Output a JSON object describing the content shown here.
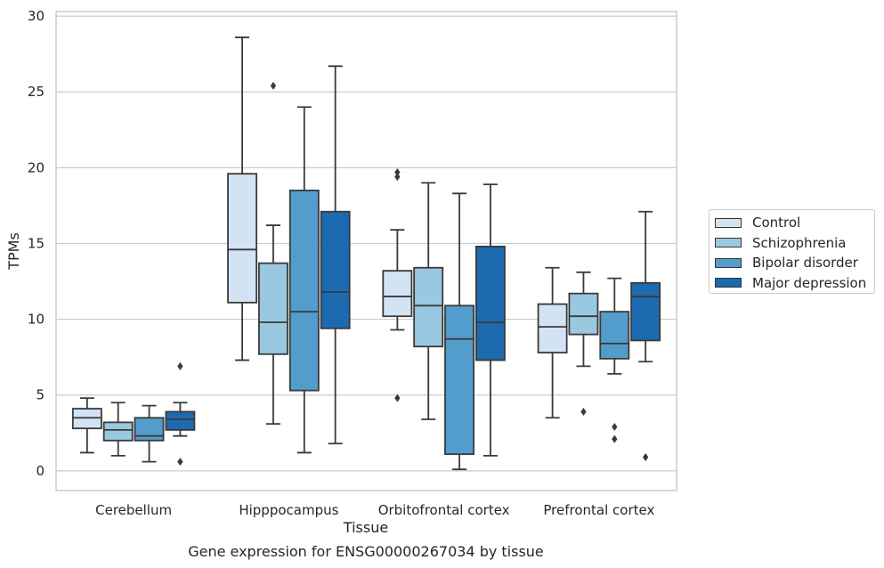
{
  "chart_data": {
    "type": "box",
    "title": "Gene expression for ENSG00000267034 by tissue",
    "xlabel": "Tissue",
    "ylabel": "TPMs",
    "ylim": [
      -1.3,
      30.3
    ],
    "yticks": [
      0,
      5,
      10,
      15,
      20,
      25,
      30
    ],
    "grid": true,
    "legend_position": "right",
    "categories": [
      "Cerebellum",
      "Hipppocampus",
      "Orbitofrontal cortex",
      "Prefrontal cortex"
    ],
    "series": [
      {
        "name": "Control",
        "color": "#d2e3f3",
        "boxes": [
          {
            "whislo": 1.2,
            "q1": 2.8,
            "med": 3.5,
            "q3": 4.1,
            "whishi": 4.8,
            "fliers": []
          },
          {
            "whislo": 7.3,
            "q1": 11.1,
            "med": 14.6,
            "q3": 19.6,
            "whishi": 28.6,
            "fliers": []
          },
          {
            "whislo": 9.3,
            "q1": 10.2,
            "med": 11.5,
            "q3": 13.2,
            "whishi": 15.9,
            "fliers": [
              19.7,
              19.4,
              4.8
            ]
          },
          {
            "whislo": 3.5,
            "q1": 7.8,
            "med": 9.5,
            "q3": 11.0,
            "whishi": 13.4,
            "fliers": []
          }
        ]
      },
      {
        "name": "Schizophrenia",
        "color": "#9ac8e0",
        "boxes": [
          {
            "whislo": 1.0,
            "q1": 2.0,
            "med": 2.7,
            "q3": 3.2,
            "whishi": 4.5,
            "fliers": []
          },
          {
            "whislo": 3.1,
            "q1": 7.7,
            "med": 9.8,
            "q3": 13.7,
            "whishi": 16.2,
            "fliers": [
              25.4
            ]
          },
          {
            "whislo": 3.4,
            "q1": 8.2,
            "med": 10.9,
            "q3": 13.4,
            "whishi": 19.0,
            "fliers": []
          },
          {
            "whislo": 6.9,
            "q1": 9.0,
            "med": 10.2,
            "q3": 11.7,
            "whishi": 13.1,
            "fliers": [
              3.9
            ]
          }
        ]
      },
      {
        "name": "Bipolar disorder",
        "color": "#529dcc",
        "boxes": [
          {
            "whislo": 0.6,
            "q1": 2.0,
            "med": 2.3,
            "q3": 3.5,
            "whishi": 4.3,
            "fliers": []
          },
          {
            "whislo": 1.2,
            "q1": 5.3,
            "med": 10.5,
            "q3": 18.5,
            "whishi": 24.0,
            "fliers": []
          },
          {
            "whislo": 0.1,
            "q1": 1.1,
            "med": 8.7,
            "q3": 10.9,
            "whishi": 18.3,
            "fliers": []
          },
          {
            "whislo": 6.4,
            "q1": 7.4,
            "med": 8.4,
            "q3": 10.5,
            "whishi": 12.7,
            "fliers": [
              2.9,
              2.1
            ]
          }
        ]
      },
      {
        "name": "Major depression",
        "color": "#1c6aaf",
        "boxes": [
          {
            "whislo": 2.3,
            "q1": 2.7,
            "med": 3.4,
            "q3": 3.9,
            "whishi": 4.5,
            "fliers": [
              6.9,
              0.6
            ]
          },
          {
            "whislo": 1.8,
            "q1": 9.4,
            "med": 11.8,
            "q3": 17.1,
            "whishi": 26.7,
            "fliers": []
          },
          {
            "whislo": 1.0,
            "q1": 7.3,
            "med": 9.8,
            "q3": 14.8,
            "whishi": 18.9,
            "fliers": []
          },
          {
            "whislo": 7.2,
            "q1": 8.6,
            "med": 11.5,
            "q3": 12.4,
            "whishi": 17.1,
            "fliers": [
              0.9
            ]
          }
        ]
      }
    ]
  }
}
